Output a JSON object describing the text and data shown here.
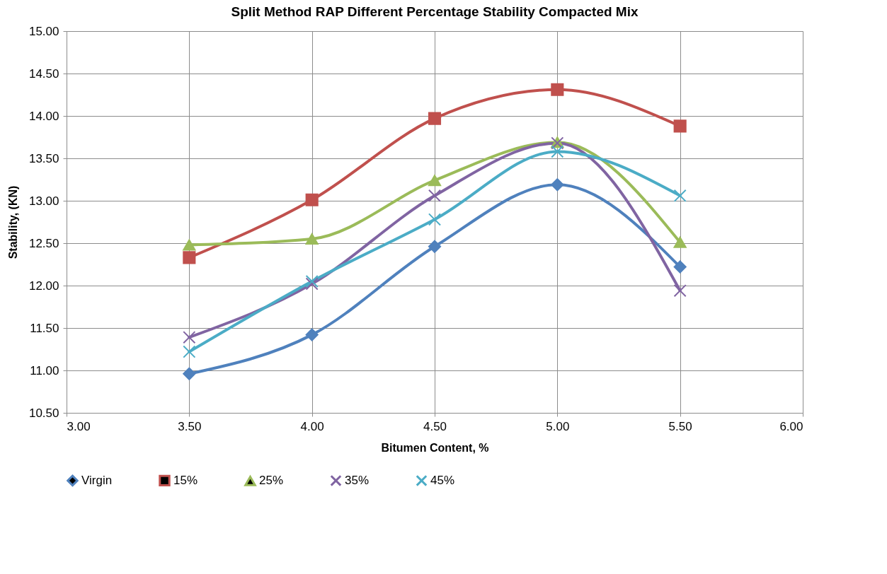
{
  "chart_data": {
    "type": "line",
    "title": "Split Method RAP Different Percentage Stability Compacted Mix",
    "xlabel": "Bitumen Content, %",
    "ylabel": "Stability, (KN)",
    "x": [
      3.5,
      4.0,
      4.5,
      5.0,
      5.5
    ],
    "series": [
      {
        "name": "Virgin",
        "color": "#4f81bd",
        "marker": "diamond",
        "values": [
          10.96,
          11.42,
          12.46,
          13.19,
          12.22
        ]
      },
      {
        "name": "15%",
        "color": "#c0504d",
        "marker": "square",
        "values": [
          12.33,
          13.01,
          13.97,
          14.31,
          13.88
        ]
      },
      {
        "name": "25%",
        "color": "#9bbb59",
        "marker": "triangle",
        "values": [
          12.48,
          12.55,
          13.24,
          13.69,
          12.51
        ]
      },
      {
        "name": "35%",
        "color": "#8064a2",
        "marker": "cross",
        "values": [
          11.39,
          12.02,
          13.06,
          13.68,
          11.94
        ]
      },
      {
        "name": "45%",
        "color": "#4bacc6",
        "marker": "cross",
        "values": [
          11.22,
          12.05,
          12.78,
          13.58,
          13.06
        ]
      }
    ],
    "xlim": [
      3.0,
      6.0
    ],
    "xticks": [
      {
        "value": 3.0,
        "label": "3.00"
      },
      {
        "value": 3.5,
        "label": "3.50"
      },
      {
        "value": 4.0,
        "label": "4.00"
      },
      {
        "value": 4.5,
        "label": "4.50"
      },
      {
        "value": 5.0,
        "label": "5.00"
      },
      {
        "value": 5.5,
        "label": "5.50"
      },
      {
        "value": 6.0,
        "label": "6.00"
      }
    ],
    "ylim": [
      10.5,
      15.0
    ],
    "yticks": [
      {
        "value": 10.5,
        "label": "10.50"
      },
      {
        "value": 11.0,
        "label": "11.00"
      },
      {
        "value": 11.5,
        "label": "11.50"
      },
      {
        "value": 12.0,
        "label": "12.00"
      },
      {
        "value": 12.5,
        "label": "12.50"
      },
      {
        "value": 13.0,
        "label": "13.00"
      },
      {
        "value": 13.5,
        "label": "13.50"
      },
      {
        "value": 14.0,
        "label": "14.00"
      },
      {
        "value": 14.5,
        "label": "14.50"
      },
      {
        "value": 15.0,
        "label": "15.00"
      }
    ],
    "grid": true,
    "legend": "bottom",
    "line_style": "solid"
  }
}
